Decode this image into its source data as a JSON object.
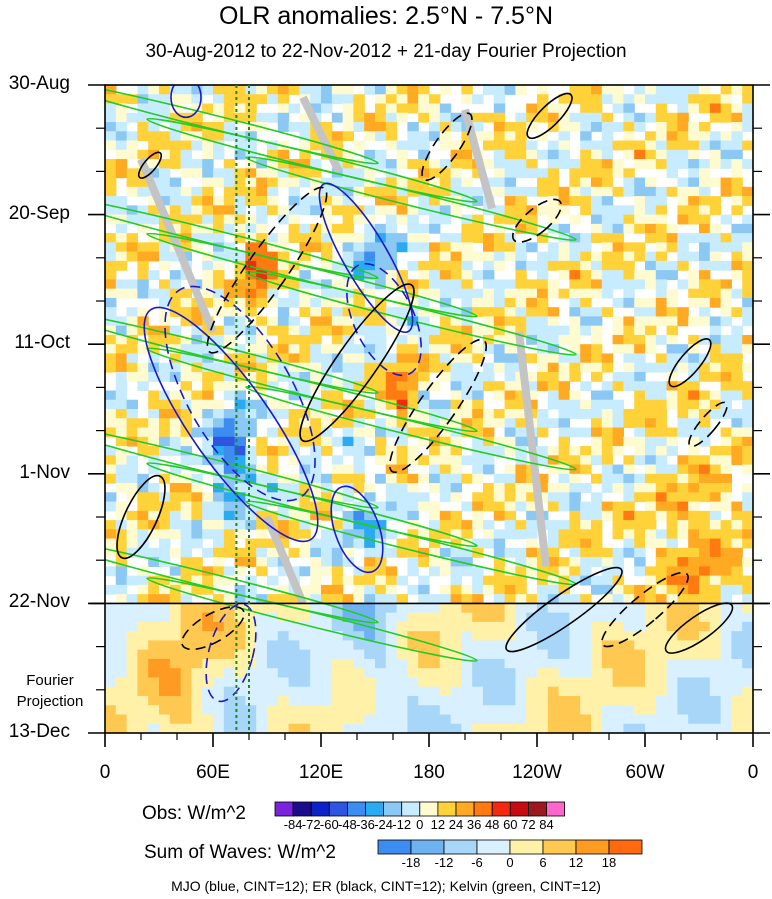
{
  "chart_data": {
    "type": "heatmap",
    "title": "OLR anomalies: 2.5°N - 7.5°N",
    "subtitle": "30-Aug-2012 to 22-Nov-2012 + 21-day Fourier Projection",
    "xlabel": "",
    "ylabel": "",
    "x_ticks": [
      "0",
      "60E",
      "120E",
      "180",
      "120W",
      "60W",
      "0"
    ],
    "x_tick_values": [
      0,
      60,
      120,
      180,
      240,
      300,
      360
    ],
    "y_ticks": [
      "30-Aug",
      "20-Sep",
      "11-Oct",
      "1-Nov",
      "22-Nov",
      "13-Dec"
    ],
    "y_tick_days": [
      0,
      21,
      42,
      63,
      84,
      105
    ],
    "xlim": [
      0,
      360
    ],
    "ylim_days": [
      0,
      105
    ],
    "projection_start_day": 84,
    "projection_label": [
      "Fourier",
      "Projection"
    ],
    "vertical_lines_lon": [
      73,
      80
    ],
    "obs_colorbar": {
      "label": "Obs: W/m^2",
      "levels": [
        -84,
        -72,
        -60,
        -48,
        -36,
        -24,
        -12,
        0,
        12,
        24,
        36,
        48,
        60,
        72,
        84
      ],
      "colors": [
        "#7a22dd",
        "#1a0c8c",
        "#0c22c8",
        "#2d55e0",
        "#3d8cf0",
        "#2aaaf0",
        "#8cc8f4",
        "#c8ecff",
        "#fffbd0",
        "#ffd23a",
        "#ffaa22",
        "#ff7a10",
        "#f22a10",
        "#c80a12",
        "#9a1a20",
        "#ff66cc"
      ]
    },
    "waves_colorbar": {
      "label": "Sum of Waves: W/m^2",
      "levels": [
        -18,
        -12,
        -6,
        0,
        6,
        12,
        18
      ],
      "colors": [
        "#3d8cf0",
        "#6fb2f2",
        "#a8d6f8",
        "#d8f0ff",
        "#fff2a8",
        "#ffc850",
        "#ff9a22",
        "#ff6a10"
      ]
    },
    "contours": [
      {
        "name": "MJO",
        "color": "blue",
        "cint": 12
      },
      {
        "name": "ER",
        "color": "black",
        "cint": 12
      },
      {
        "name": "Kelvin",
        "color": "green",
        "cint": 12
      }
    ],
    "footer": "MJO (blue, CINT=12); ER (black, CINT=12); Kelvin (green, CINT=12)"
  }
}
